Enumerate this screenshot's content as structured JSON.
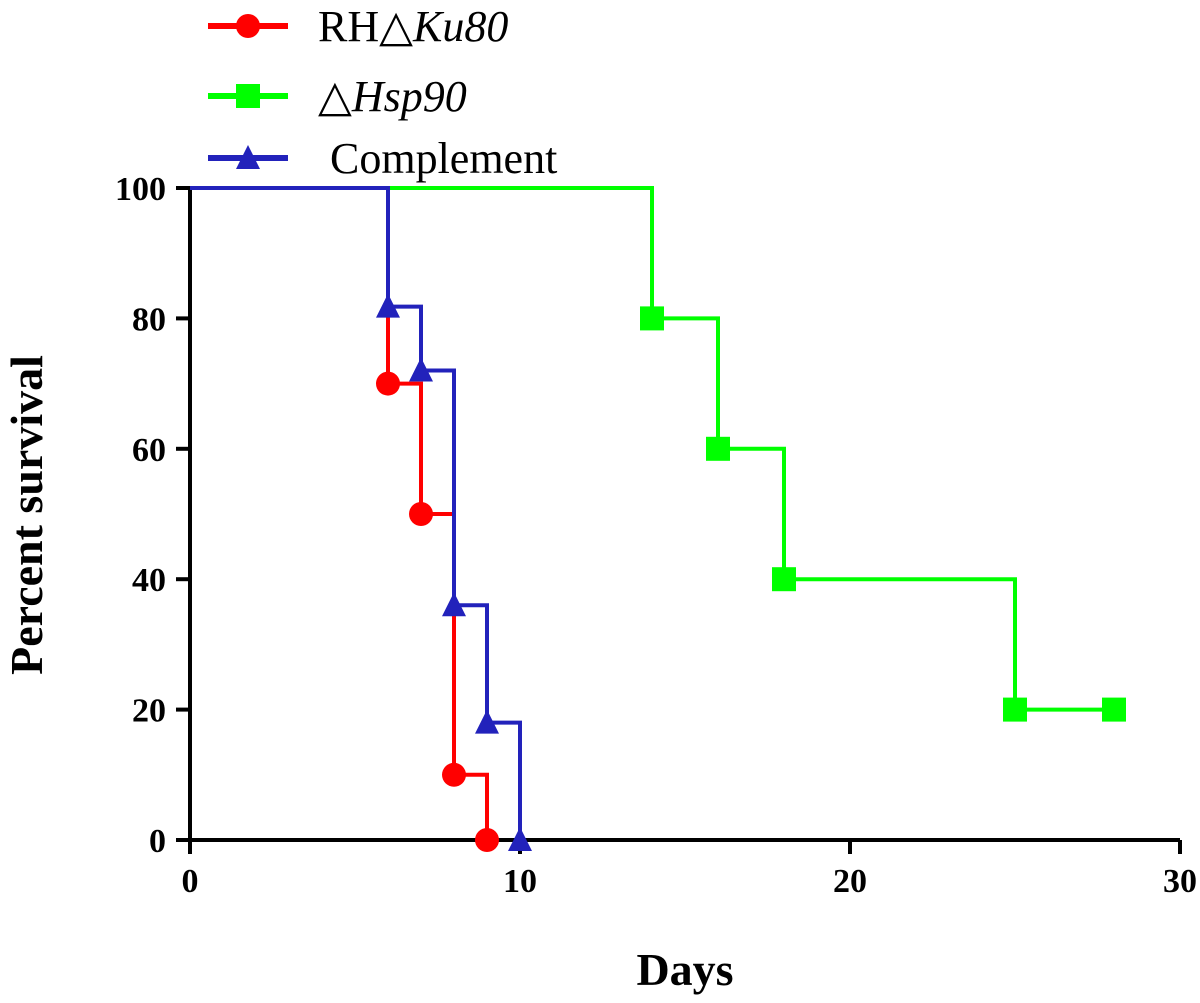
{
  "chart_data": {
    "type": "line",
    "subtype": "kaplan-meier step survival curve",
    "xlabel": "Days",
    "ylabel": "Percent survival",
    "xlim": [
      0,
      30
    ],
    "ylim": [
      0,
      100
    ],
    "x_ticks": [
      "0",
      "10",
      "20",
      "30"
    ],
    "y_ticks": [
      "0",
      "20",
      "40",
      "60",
      "80",
      "100"
    ],
    "grid": false,
    "legend_position": "top-left",
    "series": [
      {
        "name_prefix": "RH",
        "name_symbol": "△",
        "name_italic": "Ku80",
        "color": "#ff0000",
        "marker": "circle",
        "start": [
          0,
          100
        ],
        "points": [
          [
            6,
            70
          ],
          [
            7,
            50
          ],
          [
            8,
            10
          ],
          [
            9,
            0
          ]
        ],
        "segments_end_x": [
          7,
          8,
          9,
          9
        ]
      },
      {
        "name_prefix": "",
        "name_symbol": "△",
        "name_italic": "Hsp90",
        "color": "#00ff00",
        "marker": "square",
        "start": [
          0,
          100
        ],
        "points": [
          [
            14,
            80
          ],
          [
            16,
            60
          ],
          [
            18,
            40
          ],
          [
            25,
            20
          ],
          [
            28,
            20
          ]
        ],
        "segments_end_x": [
          16,
          18,
          25,
          28,
          28
        ]
      },
      {
        "name_prefix": "",
        "name_symbol": "",
        "name_italic": "",
        "name": "Complement",
        "color": "#2222bb",
        "marker": "triangle",
        "start": [
          0,
          100
        ],
        "points": [
          [
            6,
            81.8
          ],
          [
            7,
            72
          ],
          [
            8,
            36
          ],
          [
            9,
            18
          ],
          [
            10,
            0
          ]
        ],
        "segments_end_x": [
          7,
          8,
          9,
          10,
          10
        ]
      }
    ]
  }
}
